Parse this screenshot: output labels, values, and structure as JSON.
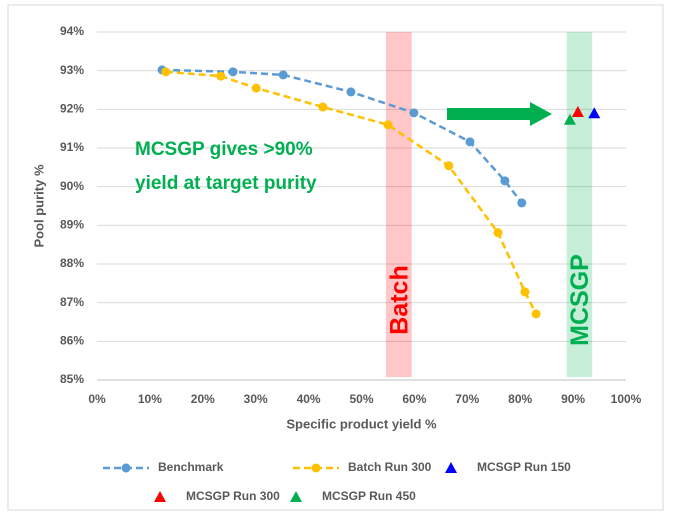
{
  "chart_data": {
    "type": "line",
    "xlabel": "Specific product yield %",
    "ylabel": "Pool purity %",
    "xlim": [
      0,
      100
    ],
    "xticks": [
      {
        "value": 0,
        "label": "0%"
      },
      {
        "value": 10,
        "label": "10%"
      },
      {
        "value": 20,
        "label": "20%"
      },
      {
        "value": 30,
        "label": "30%"
      },
      {
        "value": 40,
        "label": "40%"
      },
      {
        "value": 50,
        "label": "50%"
      },
      {
        "value": 60,
        "label": "60%"
      },
      {
        "value": 70,
        "label": "70%"
      },
      {
        "value": 80,
        "label": "80%"
      },
      {
        "value": 90,
        "label": "90%"
      },
      {
        "value": 100,
        "label": "100%"
      }
    ],
    "ylim": [
      85,
      94
    ],
    "yticks": [
      {
        "value": 85,
        "label": "85%"
      },
      {
        "value": 86,
        "label": "86%"
      },
      {
        "value": 87,
        "label": "87%"
      },
      {
        "value": 88,
        "label": "88%"
      },
      {
        "value": 89,
        "label": "89%"
      },
      {
        "value": 90,
        "label": "90%"
      },
      {
        "value": 91,
        "label": "91%"
      },
      {
        "value": 92,
        "label": "92%"
      },
      {
        "value": 93,
        "label": "93%"
      },
      {
        "value": 94,
        "label": "94%"
      }
    ],
    "grid": true,
    "series": [
      {
        "name": "Benchmark",
        "color": "#5b9bd5",
        "marker": "circle",
        "line": "dashed",
        "x": [
          12.3,
          25.7,
          35.2,
          48.0,
          59.9,
          70.5,
          77.1,
          80.3
        ],
        "values": [
          93.02,
          92.97,
          92.89,
          92.45,
          91.91,
          91.16,
          90.15,
          89.58
        ]
      },
      {
        "name": "Batch Run 300",
        "color": "#ffc000",
        "marker": "circle",
        "line": "dashed",
        "x": [
          13.0,
          23.4,
          30.1,
          42.7,
          55.0,
          66.5,
          75.8,
          80.9,
          83.0
        ],
        "values": [
          92.97,
          92.86,
          92.55,
          92.06,
          91.6,
          90.54,
          88.81,
          87.28,
          86.71
        ]
      },
      {
        "name": "MCSGP Run 150",
        "color": "#0000ff",
        "marker": "triangle",
        "line": "none",
        "x": [
          94.0
        ],
        "values": [
          91.9
        ]
      },
      {
        "name": "MCSGP Run 300",
        "color": "#ff0000",
        "marker": "triangle",
        "line": "none",
        "x": [
          90.9
        ],
        "values": [
          91.93
        ]
      },
      {
        "name": "MCSGP Run 450",
        "color": "#00b050",
        "marker": "triangle",
        "line": "none",
        "x": [
          89.4
        ],
        "values": [
          91.73
        ]
      }
    ],
    "bands": [
      {
        "label": "Batch",
        "color": "#ff0000",
        "range": [
          54.6,
          59.5
        ]
      },
      {
        "label": "MCSGP",
        "color": "#00b050",
        "range": [
          88.8,
          93.6
        ]
      }
    ],
    "annotation": [
      "MCSGP gives >90%",
      "yield at target purity"
    ]
  }
}
